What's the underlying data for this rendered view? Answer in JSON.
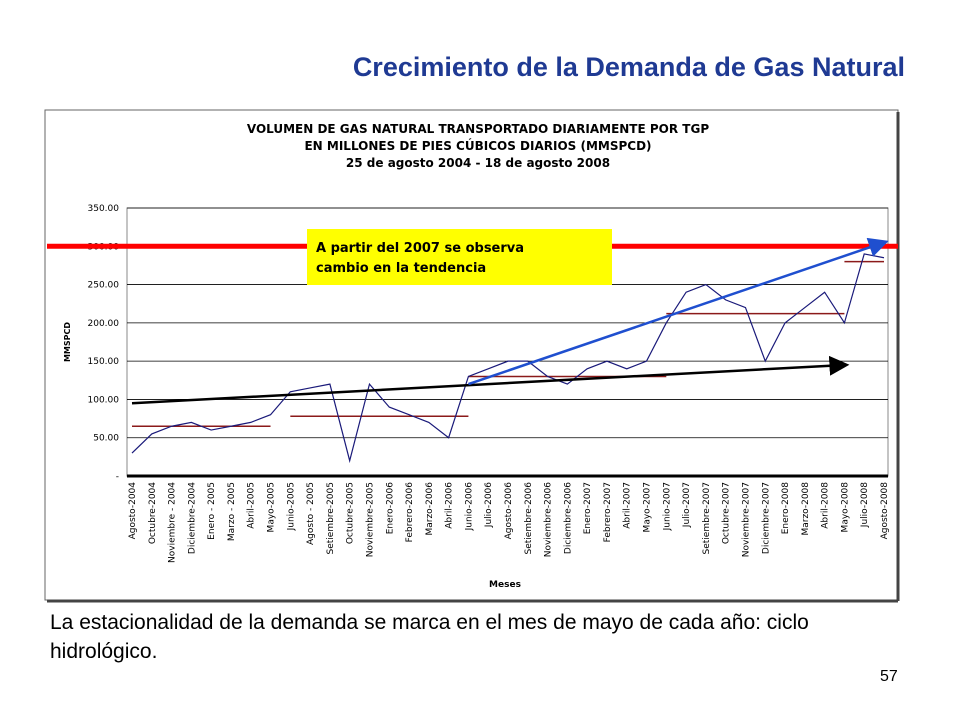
{
  "slide_title": "Crecimiento de la Demanda de Gas Natural",
  "caption": "La estacionalidad de la demanda se marca en el mes de mayo de cada año: ciclo hidrológico.",
  "page_number": "57",
  "chart_data": {
    "type": "line",
    "title": [
      "VOLUMEN DE GAS NATURAL TRANSPORTADO DIARIAMENTE POR TGP",
      "EN MILLONES DE PIES CÚBICOS DIARIOS (MMSPCD)",
      "25 de agosto 2004 - 18 de agosto 2008"
    ],
    "y_label": "MMSPCD",
    "x_label": "Meses",
    "annotation": [
      "A partir del 2007 se observa",
      "cambio en la tendencia"
    ],
    "categories": [
      "Agosto-2004",
      "Octubre-2004",
      "Noviembre - 2004",
      "Diciembre-2004",
      "Enero - 2005",
      "Marzo - 2005",
      "Abril-2005",
      "Mayo-2005",
      "Junio-2005",
      "Agosto - 2005",
      "Setiembre-2005",
      "Octubre-2005",
      "Noviembre-2005",
      "Enero-2006",
      "Febrero-2006",
      "Marzo-2006",
      "Abril-2006",
      "Junio-2006",
      "Julio-2006",
      "Agosto-2006",
      "Setiembre-2006",
      "Noviembre-2006",
      "Diciembre-2006",
      "Enero-2007",
      "Febrero-2007",
      "Abril-2007",
      "Mayo-2007",
      "Junio-2007",
      "Julio-2007",
      "Setiembre-2007",
      "Octubre-2007",
      "Noviembre-2007",
      "Diciembre-2007",
      "Enero-2008",
      "Marzo-2008",
      "Abril-2008",
      "Mayo-2008",
      "Julio-2008",
      "Agosto-2008"
    ],
    "series": [
      {
        "name": "MMSPCD",
        "color": "#1a1a7a",
        "values": [
          30,
          55,
          65,
          70,
          60,
          65,
          70,
          80,
          110,
          115,
          120,
          20,
          120,
          90,
          80,
          70,
          50,
          130,
          140,
          150,
          150,
          130,
          120,
          140,
          150,
          140,
          150,
          200,
          240,
          250,
          230,
          220,
          150,
          200,
          220,
          240,
          200,
          290,
          285
        ]
      }
    ],
    "average_levels": [
      {
        "from": "Agosto-2004",
        "to": "Mayo-2005",
        "value": 65
      },
      {
        "from": "Junio-2005",
        "to": "Junio-2006",
        "value": 78
      },
      {
        "from": "Junio-2006",
        "to": "Junio-2007",
        "value": 130
      },
      {
        "from": "Junio-2007",
        "to": "Mayo-2008",
        "value": 212
      },
      {
        "from": "Mayo-2008",
        "to": "Agosto-2008",
        "value": 280
      }
    ],
    "level_color": "#8b1a1a",
    "reference_line": {
      "value": 300,
      "color": "#ff0000"
    },
    "trend_arrows": [
      {
        "from": "Agosto-2004",
        "to": "Mayo-2008",
        "start": 95,
        "end": 145,
        "color": "#000000"
      },
      {
        "from": "Junio-2006",
        "to": "Agosto-2008",
        "start": 120,
        "end": 305,
        "color": "#1f4fcf"
      }
    ],
    "ylim": [
      0,
      350
    ],
    "yticks": [
      {
        "value": 0,
        "label": "-"
      },
      {
        "value": 50,
        "label": "50.00"
      },
      {
        "value": 100,
        "label": "100.00"
      },
      {
        "value": 150,
        "label": "150.00"
      },
      {
        "value": 200,
        "label": "200.00"
      },
      {
        "value": 250,
        "label": "250.00"
      },
      {
        "value": 300,
        "label": "300.00"
      },
      {
        "value": 350,
        "label": "350.00"
      }
    ],
    "grid": true
  }
}
